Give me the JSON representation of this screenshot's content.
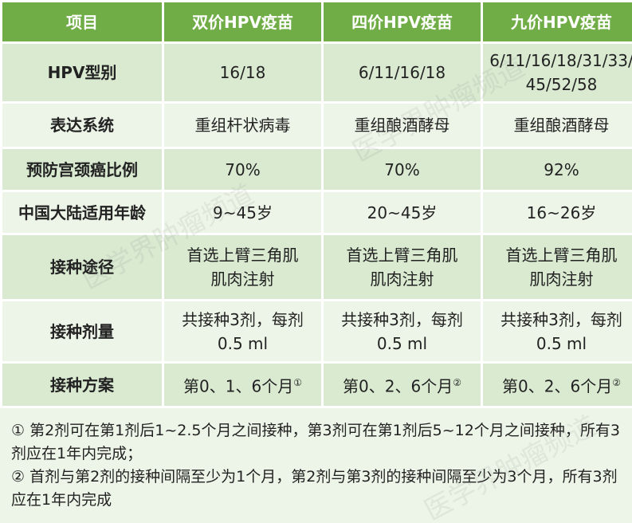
{
  "table": {
    "header": [
      "项目",
      "双价HPV疫苗",
      "四价HPV疫苗",
      "九价HPV疫苗"
    ],
    "rows": [
      {
        "label": "HPV型别",
        "cells": [
          [
            "16/18"
          ],
          [
            "6/11/16/18"
          ],
          [
            "6/11/16/18/31/33/",
            "45/52/58"
          ]
        ]
      },
      {
        "label": "表达系统",
        "cells": [
          [
            "重组杆状病毒"
          ],
          [
            "重组酿酒酵母"
          ],
          [
            "重组酿酒酵母"
          ]
        ]
      },
      {
        "label": "预防宫颈癌比例",
        "cells": [
          [
            "70%"
          ],
          [
            "70%"
          ],
          [
            "92%"
          ]
        ]
      },
      {
        "label": "中国大陆适用年龄",
        "cells": [
          [
            "9~45岁"
          ],
          [
            "20~45岁"
          ],
          [
            "16~26岁"
          ]
        ]
      },
      {
        "label": "接种途径",
        "cells": [
          [
            "首选上臂三角肌",
            "肌肉注射"
          ],
          [
            "首选上臂三角肌",
            "肌肉注射"
          ],
          [
            "首选上臂三角肌",
            "肌肉注射"
          ]
        ]
      },
      {
        "label": "接种剂量",
        "cells": [
          [
            "共接种3剂，每剂",
            "0.5 ml"
          ],
          [
            "共接种3剂，每剂",
            "0.5 ml"
          ],
          [
            "共接种3剂，每剂",
            "0.5 ml"
          ]
        ]
      },
      {
        "label": "接种方案",
        "cells": [
          [
            "第0、1、6个月"
          ],
          [
            "第0、2、6个月"
          ],
          [
            "第0、2、6个月"
          ]
        ],
        "notes": [
          "①",
          "②",
          "②"
        ]
      }
    ],
    "footnotes": [
      "① 第2剂可在第1剂后1~2.5个月之间接种，第3剂可在第1剂后5~12个月之间接种，所有3剂应在1年内完成；",
      "② 首剂与第2剂的接种间隔至少为1个月，第2剂与第3剂的接种间隔至少为3个月，所有3剂应在1年内完成"
    ]
  },
  "watermark": "医学界肿瘤频道"
}
